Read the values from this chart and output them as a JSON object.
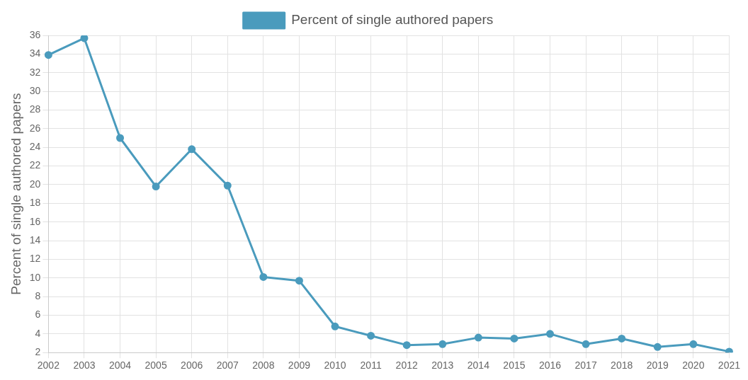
{
  "chart_data": {
    "type": "line",
    "ylabel": "Percent of single authored papers",
    "categories": [
      "2002",
      "2003",
      "2004",
      "2005",
      "2006",
      "2007",
      "2008",
      "2009",
      "2010",
      "2011",
      "2012",
      "2013",
      "2014",
      "2015",
      "2016",
      "2017",
      "2018",
      "2019",
      "2020",
      "2021"
    ],
    "series": [
      {
        "name": "Percent of single authored papers",
        "color": "#4a9bbd",
        "values": [
          33.9,
          35.7,
          25.0,
          19.8,
          23.8,
          19.9,
          10.1,
          9.7,
          4.8,
          3.8,
          2.8,
          2.9,
          3.6,
          3.5,
          4.0,
          2.9,
          3.5,
          2.6,
          2.9,
          2.1
        ]
      }
    ],
    "ylim": [
      2,
      36
    ],
    "yticks": [
      2,
      4,
      6,
      8,
      10,
      12,
      14,
      16,
      18,
      20,
      22,
      24,
      26,
      28,
      30,
      32,
      34,
      36
    ],
    "grid": true,
    "legend": "top",
    "marker": "circle",
    "line_style": "solid"
  }
}
